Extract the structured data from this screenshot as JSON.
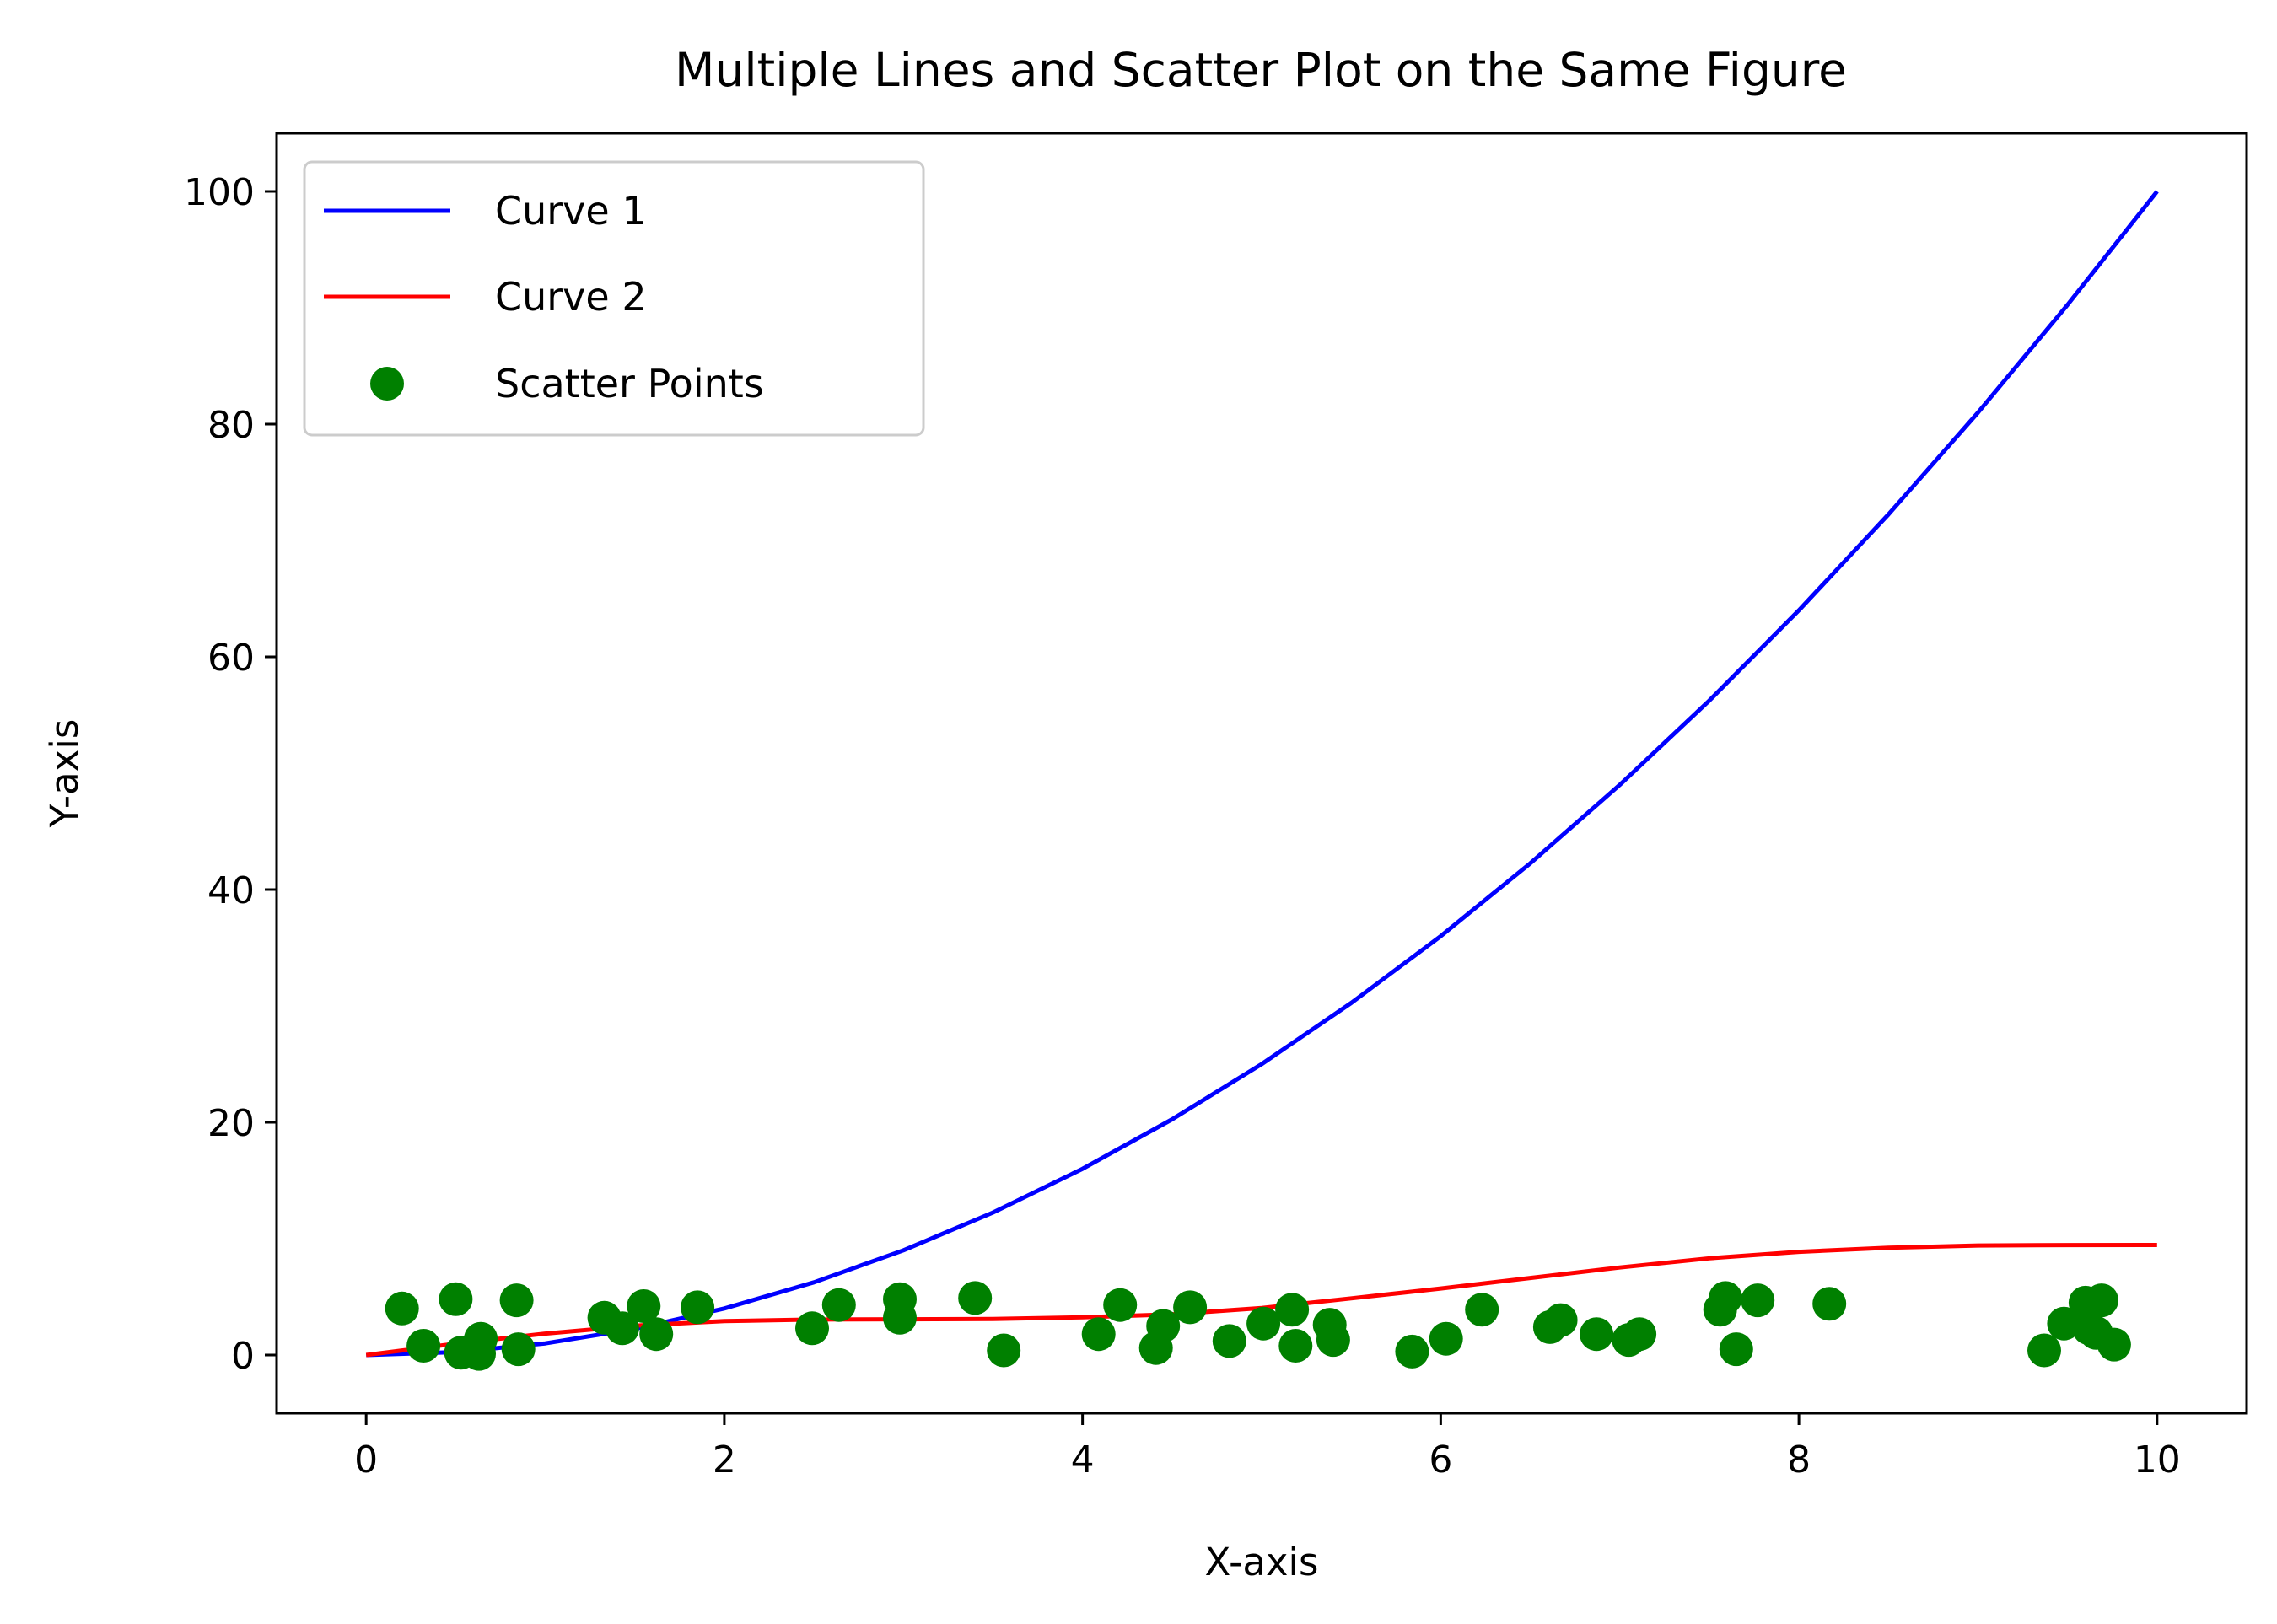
{
  "chart_data": {
    "type": "line",
    "title": "Multiple Lines and Scatter Plot on the Same Figure",
    "xlabel": "X-axis",
    "ylabel": "Y-axis",
    "xlim": [
      -0.5,
      10.5
    ],
    "ylim": [
      -5,
      105
    ],
    "xticks": [
      0,
      2,
      4,
      6,
      8,
      10
    ],
    "yticks": [
      0,
      20,
      40,
      60,
      80,
      100
    ],
    "grid": false,
    "legend_position": "upper-left",
    "series": [
      {
        "name": "Curve 1",
        "kind": "line",
        "color": "#0000ff",
        "x": [
          0,
          0.5,
          1,
          1.5,
          2,
          2.5,
          3,
          3.5,
          4,
          4.5,
          5,
          5.5,
          6,
          6.5,
          7,
          7.5,
          8,
          8.5,
          9,
          9.5,
          10
        ],
        "y": [
          0,
          0.25,
          1,
          2.25,
          4,
          6.25,
          9,
          12.25,
          16,
          20.25,
          25,
          30.25,
          36,
          42.25,
          49,
          56.25,
          64,
          72.25,
          81,
          90.25,
          100
        ]
      },
      {
        "name": "Curve 2",
        "kind": "line",
        "color": "#ff0000",
        "x": [
          0,
          0.5,
          1,
          1.5,
          2,
          2.5,
          3,
          3.5,
          4,
          4.5,
          5,
          5.5,
          6,
          6.5,
          7,
          7.5,
          8,
          8.5,
          9,
          9.5,
          10
        ],
        "y": [
          0,
          0.98,
          1.84,
          2.52,
          2.91,
          3.05,
          3.07,
          3.1,
          3.24,
          3.5,
          4.04,
          4.87,
          5.72,
          6.62,
          7.52,
          8.31,
          8.87,
          9.22,
          9.41,
          9.45,
          9.46
        ]
      },
      {
        "name": "Scatter Points",
        "kind": "scatter",
        "color": "#008000",
        "x": [
          0.2,
          0.32,
          0.5,
          0.53,
          0.63,
          0.64,
          0.84,
          0.85,
          1.33,
          1.43,
          1.55,
          1.62,
          1.85,
          2.49,
          2.64,
          2.98,
          2.98,
          3.4,
          3.56,
          4.09,
          4.21,
          4.41,
          4.45,
          4.6,
          4.82,
          5.01,
          5.17,
          5.19,
          5.38,
          5.4,
          5.84,
          6.03,
          6.23,
          6.61,
          6.67,
          6.87,
          7.05,
          7.11,
          7.56,
          7.59,
          7.65,
          7.77,
          8.17,
          9.37,
          9.48,
          9.6,
          9.62,
          9.66,
          9.69,
          9.76
        ],
        "y": [
          4,
          0.8,
          4.8,
          0.2,
          0.1,
          1.4,
          4.7,
          0.5,
          3.2,
          2.3,
          4.2,
          1.8,
          4.1,
          2.3,
          4.3,
          4.8,
          3.2,
          4.9,
          0.4,
          1.8,
          4.3,
          0.6,
          2.5,
          4.1,
          1.2,
          2.7,
          3.9,
          0.8,
          2.6,
          1.3,
          0.3,
          1.4,
          3.9,
          2.4,
          3,
          1.8,
          1.3,
          1.8,
          3.9,
          4.9,
          0.5,
          4.7,
          4.4,
          0.4,
          2.7,
          4.5,
          2.3,
          1.9,
          4.7,
          0.9
        ]
      }
    ]
  }
}
